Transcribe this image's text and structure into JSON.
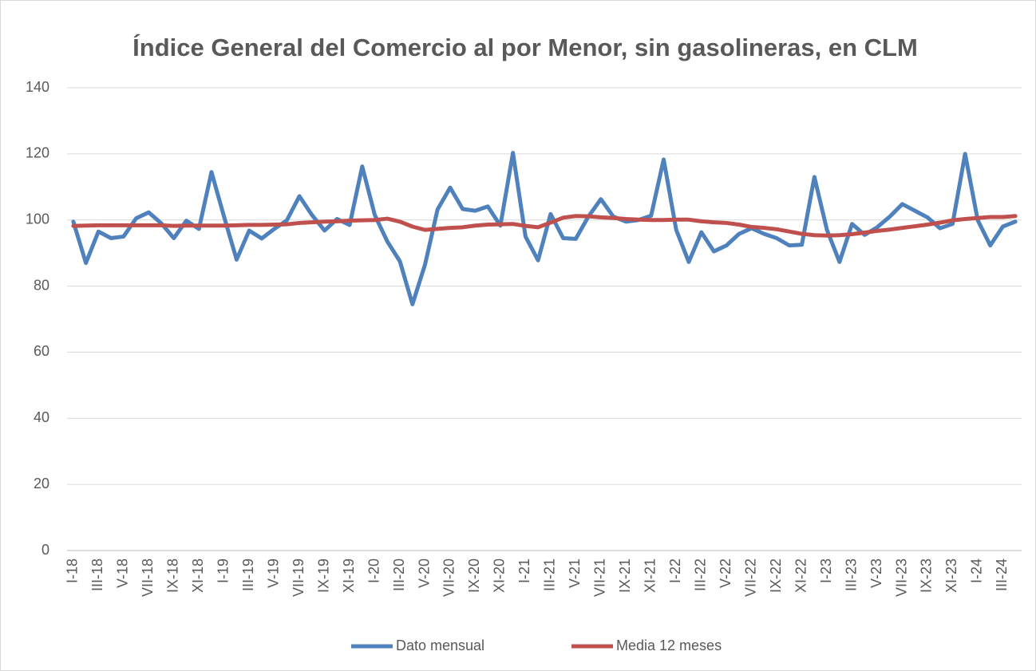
{
  "chart_data": {
    "type": "line",
    "title": "Índice General del Comercio al por Menor, sin gasolineras, en CLM",
    "categories": [
      "I-18",
      null,
      "III-18",
      null,
      "V-18",
      null,
      "VII-18",
      null,
      "IX-18",
      null,
      "XI-18",
      null,
      "I-19",
      null,
      "III-19",
      null,
      "V-19",
      null,
      "VII-19",
      null,
      "IX-19",
      null,
      "XI-19",
      null,
      "I-20",
      null,
      "III-20",
      null,
      "V-20",
      null,
      "VII-20",
      null,
      "IX-20",
      null,
      "XI-20",
      null,
      "I-21",
      null,
      "III-21",
      null,
      "V-21",
      null,
      "VII-21",
      null,
      "IX-21",
      null,
      "XI-21",
      null,
      "I-22",
      null,
      "III-22",
      null,
      "V-22",
      null,
      "VII-22",
      null,
      "IX-22",
      null,
      "XI-22",
      null,
      "I-23",
      null,
      "III-23",
      null,
      "V-23",
      null,
      "VII-23",
      null,
      "IX-23",
      null,
      "XI-23",
      null,
      "I-24",
      null,
      "III-24",
      null
    ],
    "series": [
      {
        "name": "Dato mensual",
        "color": "#4f81bd",
        "values": [
          99.5,
          87,
          96.5,
          94.5,
          95,
          100.5,
          102.3,
          99,
          94.5,
          99.8,
          97.3,
          114.5,
          101,
          88,
          96.8,
          94.4,
          97.3,
          99.9,
          107.2,
          101.5,
          96.8,
          100.3,
          98.5,
          116.2,
          101.5,
          93.5,
          87.5,
          74.5,
          86.5,
          103.2,
          109.8,
          103.3,
          102.8,
          104.1,
          98.3,
          120.3,
          95,
          87.8,
          101.8,
          94.5,
          94.3,
          101,
          106.3,
          101,
          99.5,
          100,
          101.3,
          118.3,
          97,
          87.3,
          96.3,
          90.5,
          92.3,
          95.8,
          97.5,
          95.8,
          94.5,
          92.3,
          92.5,
          113,
          97,
          87.3,
          98.8,
          95.5,
          97.8,
          101,
          104.8,
          102.8,
          100.8,
          97.5,
          98.8,
          120,
          100,
          92.3,
          98,
          99.5
        ]
      },
      {
        "name": "Media 12 meses",
        "color": "#c0504d",
        "values": [
          98.2,
          98.3,
          98.4,
          98.4,
          98.4,
          98.4,
          98.4,
          98.4,
          98.2,
          98.3,
          98.3,
          98.3,
          98.3,
          98.4,
          98.5,
          98.5,
          98.6,
          98.7,
          99.1,
          99.3,
          99.5,
          99.6,
          99.8,
          99.9,
          100,
          100.4,
          99.5,
          98,
          97,
          97.3,
          97.6,
          97.8,
          98.3,
          98.6,
          98.7,
          98.8,
          98.2,
          97.8,
          99.2,
          100.7,
          101.2,
          101.1,
          100.8,
          100.6,
          100.3,
          100.1,
          100,
          100,
          100.1,
          100.1,
          99.6,
          99.3,
          99.1,
          98.6,
          97.9,
          97.6,
          97.2,
          96.5,
          95.8,
          95.4,
          95.3,
          95.4,
          95.7,
          96.2,
          96.7,
          97.1,
          97.6,
          98.1,
          98.6,
          99.2,
          99.9,
          100.3,
          100.6,
          100.9,
          100.9,
          101.2
        ]
      }
    ],
    "ylim": [
      0,
      140
    ],
    "yticks": [
      0,
      20,
      40,
      60,
      80,
      100,
      120,
      140
    ],
    "grid": true,
    "legend": "bottom"
  }
}
